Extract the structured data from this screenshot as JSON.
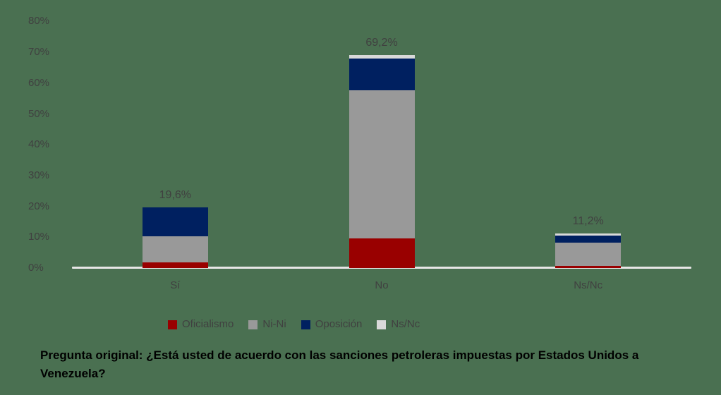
{
  "background_color": "#4A7051",
  "chart_data": {
    "type": "bar",
    "stacked": true,
    "title": "",
    "xlabel": "",
    "ylabel": "",
    "categories": [
      "Sí",
      "No",
      "Ns/Nc"
    ],
    "series": [
      {
        "name": "Oficialismo",
        "color": "#990000",
        "values": [
          1.8,
          9.6,
          0.7
        ]
      },
      {
        "name": "Ni-Ni",
        "color": "#999999",
        "values": [
          8.5,
          48.0,
          7.5
        ]
      },
      {
        "name": "Oposición",
        "color": "#002060",
        "values": [
          9.3,
          10.3,
          2.4
        ]
      },
      {
        "name": "Ns/Nc",
        "color": "#D9D9D9",
        "values": [
          0.0,
          1.3,
          0.6
        ]
      }
    ],
    "totals": [
      19.6,
      69.2,
      11.2
    ],
    "total_labels": [
      "19,6%",
      "69,2%",
      "11,2%"
    ],
    "y_tick_labels": [
      "0%",
      "10%",
      "20%",
      "30%",
      "40%",
      "50%",
      "60%",
      "70%",
      "80%"
    ],
    "y_tick_values": [
      0,
      10,
      20,
      30,
      40,
      50,
      60,
      70,
      80
    ],
    "ylim": [
      0,
      80
    ],
    "grid": false,
    "legend_position": "bottom"
  },
  "caption": "Pregunta original: ¿Está usted de acuerdo con las sanciones petroleras impuestas por Estados Unidos a Venezuela?",
  "colors": {
    "text": "#404040",
    "caption_text": "#000000",
    "axis_line": "#E7E6E6"
  }
}
